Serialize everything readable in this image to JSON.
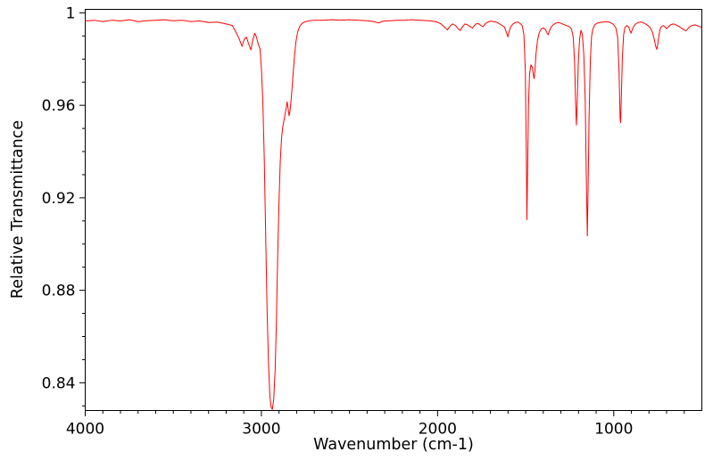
{
  "chart_data": {
    "type": "line",
    "title": "",
    "xlabel": "Wavenumber (cm-1)",
    "ylabel": "Relative Transmittance",
    "grid": false,
    "legend": false,
    "axis_color": "#000000",
    "x_axis": {
      "left_value": 4000,
      "right_value": 500,
      "reversed": true,
      "major_ticks": [
        4000,
        3000,
        2000,
        1000
      ],
      "major_tick_labels": [
        "4000",
        "3000",
        "2000",
        "1000"
      ],
      "minor_tick_step": 100
    },
    "y_axis": {
      "bottom_value": 0.828,
      "top_value": 1.0015,
      "major_ticks": [
        1,
        0.96,
        0.92,
        0.88,
        0.84
      ],
      "major_tick_labels": [
        "1",
        "0.96",
        "0.92",
        "0.88",
        "0.84"
      ],
      "minor_tick_step": 0.01
    },
    "series": [
      {
        "name": "relative transmittance spectrum",
        "color": "#ff0000",
        "points": [
          [
            4000,
            0.9965
          ],
          [
            3950,
            0.9968
          ],
          [
            3900,
            0.9962
          ],
          [
            3850,
            0.9968
          ],
          [
            3800,
            0.9965
          ],
          [
            3750,
            0.997
          ],
          [
            3700,
            0.9962
          ],
          [
            3650,
            0.9966
          ],
          [
            3600,
            0.9968
          ],
          [
            3550,
            0.997
          ],
          [
            3500,
            0.9966
          ],
          [
            3450,
            0.9968
          ],
          [
            3400,
            0.9962
          ],
          [
            3350,
            0.9965
          ],
          [
            3300,
            0.9958
          ],
          [
            3250,
            0.996
          ],
          [
            3200,
            0.9952
          ],
          [
            3165,
            0.9945
          ],
          [
            3140,
            0.991
          ],
          [
            3125,
            0.9885
          ],
          [
            3110,
            0.9855
          ],
          [
            3098,
            0.9885
          ],
          [
            3085,
            0.9895
          ],
          [
            3072,
            0.9865
          ],
          [
            3060,
            0.984
          ],
          [
            3048,
            0.9885
          ],
          [
            3038,
            0.9912
          ],
          [
            3028,
            0.9895
          ],
          [
            3018,
            0.9865
          ],
          [
            3008,
            0.9845
          ],
          [
            3000,
            0.976
          ],
          [
            2992,
            0.962
          ],
          [
            2984,
            0.938
          ],
          [
            2976,
            0.905
          ],
          [
            2968,
            0.872
          ],
          [
            2960,
            0.849
          ],
          [
            2952,
            0.8345
          ],
          [
            2945,
            0.8295
          ],
          [
            2938,
            0.8285
          ],
          [
            2930,
            0.833
          ],
          [
            2922,
            0.8455
          ],
          [
            2915,
            0.866
          ],
          [
            2908,
            0.893
          ],
          [
            2900,
            0.9185
          ],
          [
            2893,
            0.9355
          ],
          [
            2886,
            0.9455
          ],
          [
            2879,
            0.9505
          ],
          [
            2872,
            0.9535
          ],
          [
            2866,
            0.956
          ],
          [
            2860,
            0.9585
          ],
          [
            2854,
            0.9615
          ],
          [
            2848,
            0.9585
          ],
          [
            2843,
            0.9555
          ],
          [
            2838,
            0.9572
          ],
          [
            2830,
            0.9635
          ],
          [
            2822,
            0.9715
          ],
          [
            2813,
            0.9805
          ],
          [
            2804,
            0.9875
          ],
          [
            2794,
            0.9918
          ],
          [
            2782,
            0.9942
          ],
          [
            2768,
            0.9955
          ],
          [
            2750,
            0.9962
          ],
          [
            2725,
            0.9966
          ],
          [
            2700,
            0.9968
          ],
          [
            2650,
            0.9968
          ],
          [
            2600,
            0.997
          ],
          [
            2550,
            0.9968
          ],
          [
            2500,
            0.997
          ],
          [
            2450,
            0.9968
          ],
          [
            2400,
            0.9966
          ],
          [
            2360,
            0.9962
          ],
          [
            2335,
            0.9956
          ],
          [
            2310,
            0.9964
          ],
          [
            2270,
            0.9966
          ],
          [
            2230,
            0.9968
          ],
          [
            2190,
            0.9968
          ],
          [
            2150,
            0.997
          ],
          [
            2100,
            0.9968
          ],
          [
            2050,
            0.9966
          ],
          [
            2010,
            0.9962
          ],
          [
            1980,
            0.9952
          ],
          [
            1960,
            0.9938
          ],
          [
            1944,
            0.9926
          ],
          [
            1930,
            0.9942
          ],
          [
            1915,
            0.9952
          ],
          [
            1898,
            0.9945
          ],
          [
            1884,
            0.9932
          ],
          [
            1871,
            0.9924
          ],
          [
            1858,
            0.994
          ],
          [
            1845,
            0.9952
          ],
          [
            1830,
            0.9948
          ],
          [
            1815,
            0.994
          ],
          [
            1802,
            0.9934
          ],
          [
            1790,
            0.9946
          ],
          [
            1778,
            0.9954
          ],
          [
            1765,
            0.9952
          ],
          [
            1752,
            0.9944
          ],
          [
            1742,
            0.994
          ],
          [
            1730,
            0.9952
          ],
          [
            1715,
            0.996
          ],
          [
            1700,
            0.9964
          ],
          [
            1680,
            0.9962
          ],
          [
            1660,
            0.9958
          ],
          [
            1640,
            0.9948
          ],
          [
            1620,
            0.9938
          ],
          [
            1608,
            0.9912
          ],
          [
            1601,
            0.9896
          ],
          [
            1593,
            0.9922
          ],
          [
            1585,
            0.994
          ],
          [
            1572,
            0.9952
          ],
          [
            1558,
            0.9958
          ],
          [
            1545,
            0.996
          ],
          [
            1532,
            0.9955
          ],
          [
            1520,
            0.9945
          ],
          [
            1510,
            0.9905
          ],
          [
            1502,
            0.975
          ],
          [
            1496,
            0.937
          ],
          [
            1493,
            0.9105
          ],
          [
            1489,
            0.932
          ],
          [
            1484,
            0.9595
          ],
          [
            1478,
            0.9735
          ],
          [
            1470,
            0.9775
          ],
          [
            1462,
            0.9765
          ],
          [
            1456,
            0.973
          ],
          [
            1452,
            0.9715
          ],
          [
            1447,
            0.9755
          ],
          [
            1441,
            0.9825
          ],
          [
            1433,
            0.988
          ],
          [
            1424,
            0.9912
          ],
          [
            1412,
            0.993
          ],
          [
            1400,
            0.9935
          ],
          [
            1388,
            0.9928
          ],
          [
            1378,
            0.9912
          ],
          [
            1372,
            0.9905
          ],
          [
            1365,
            0.9922
          ],
          [
            1356,
            0.9938
          ],
          [
            1344,
            0.9948
          ],
          [
            1330,
            0.9955
          ],
          [
            1315,
            0.9958
          ],
          [
            1300,
            0.9955
          ],
          [
            1285,
            0.995
          ],
          [
            1268,
            0.9945
          ],
          [
            1252,
            0.994
          ],
          [
            1240,
            0.993
          ],
          [
            1230,
            0.9895
          ],
          [
            1222,
            0.978
          ],
          [
            1216,
            0.9595
          ],
          [
            1212,
            0.9515
          ],
          [
            1207,
            0.9625
          ],
          [
            1201,
            0.979
          ],
          [
            1194,
            0.9885
          ],
          [
            1186,
            0.9925
          ],
          [
            1178,
            0.9905
          ],
          [
            1170,
            0.982
          ],
          [
            1162,
            0.9625
          ],
          [
            1155,
            0.925
          ],
          [
            1150,
            0.9035
          ],
          [
            1146,
            0.9225
          ],
          [
            1140,
            0.955
          ],
          [
            1133,
            0.9795
          ],
          [
            1126,
            0.9898
          ],
          [
            1118,
            0.9932
          ],
          [
            1108,
            0.9948
          ],
          [
            1095,
            0.9955
          ],
          [
            1080,
            0.9958
          ],
          [
            1060,
            0.996
          ],
          [
            1040,
            0.9962
          ],
          [
            1020,
            0.9958
          ],
          [
            1002,
            0.995
          ],
          [
            988,
            0.9935
          ],
          [
            978,
            0.9895
          ],
          [
            970,
            0.975
          ],
          [
            964,
            0.9545
          ],
          [
            961,
            0.9525
          ],
          [
            957,
            0.9635
          ],
          [
            951,
            0.981
          ],
          [
            944,
            0.9905
          ],
          [
            936,
            0.9938
          ],
          [
            925,
            0.9945
          ],
          [
            915,
            0.9938
          ],
          [
            908,
            0.9922
          ],
          [
            902,
            0.9912
          ],
          [
            895,
            0.9928
          ],
          [
            886,
            0.9942
          ],
          [
            875,
            0.9952
          ],
          [
            862,
            0.9958
          ],
          [
            848,
            0.996
          ],
          [
            834,
            0.9958
          ],
          [
            820,
            0.9952
          ],
          [
            806,
            0.9945
          ],
          [
            792,
            0.9935
          ],
          [
            780,
            0.9915
          ],
          [
            770,
            0.9885
          ],
          [
            762,
            0.9855
          ],
          [
            756,
            0.9842
          ],
          [
            750,
            0.9865
          ],
          [
            743,
            0.9905
          ],
          [
            736,
            0.9932
          ],
          [
            728,
            0.9942
          ],
          [
            718,
            0.9945
          ],
          [
            708,
            0.9938
          ],
          [
            700,
            0.9932
          ],
          [
            692,
            0.9938
          ],
          [
            683,
            0.9945
          ],
          [
            672,
            0.995
          ],
          [
            660,
            0.9952
          ],
          [
            648,
            0.9948
          ],
          [
            636,
            0.9944
          ],
          [
            624,
            0.9938
          ],
          [
            612,
            0.9932
          ],
          [
            600,
            0.9926
          ],
          [
            591,
            0.9922
          ],
          [
            583,
            0.9928
          ],
          [
            574,
            0.9936
          ],
          [
            565,
            0.9942
          ],
          [
            552,
            0.9946
          ],
          [
            538,
            0.9948
          ],
          [
            524,
            0.9944
          ],
          [
            512,
            0.994
          ],
          [
            505,
            0.9938
          ]
        ]
      }
    ]
  }
}
